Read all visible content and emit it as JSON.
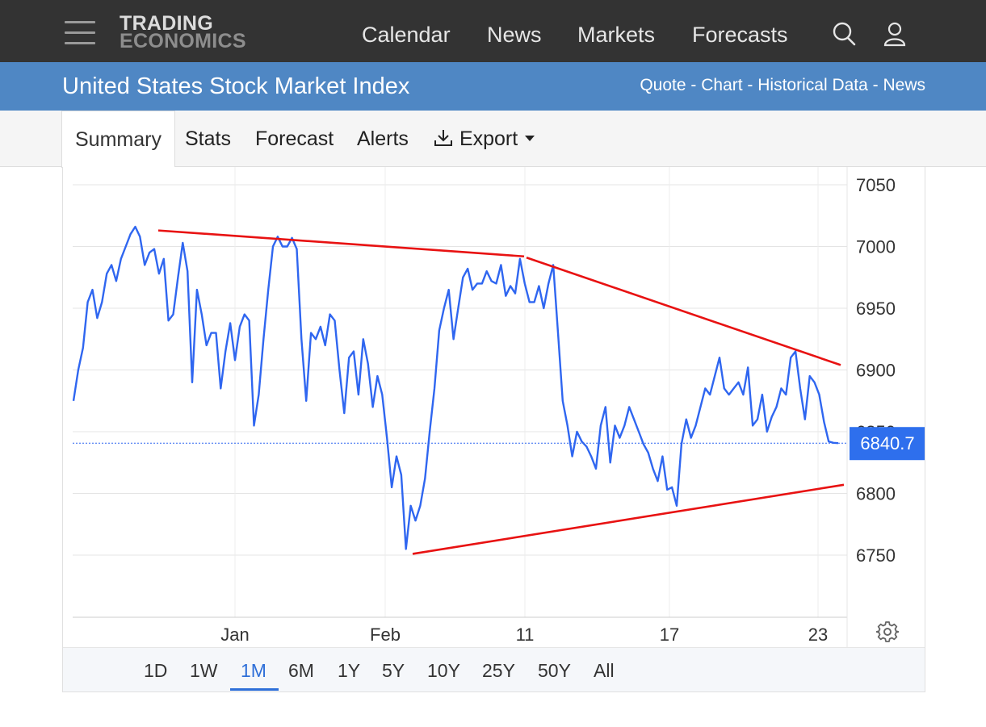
{
  "header": {
    "logo_line1": "TRADING",
    "logo_line2": "ECONOMICS",
    "nav": [
      "Calendar",
      "News",
      "Markets",
      "Forecasts"
    ]
  },
  "title_bar": {
    "title": "United States Stock Market Index",
    "links": [
      "Quote",
      "Chart",
      "Historical Data",
      "News"
    ],
    "separator": " - "
  },
  "tabs": {
    "items": [
      "Summary",
      "Stats",
      "Forecast",
      "Alerts"
    ],
    "active": "Summary",
    "export_label": "Export"
  },
  "range_buttons": {
    "items": [
      "1D",
      "1W",
      "1M",
      "6M",
      "1Y",
      "5Y",
      "10Y",
      "25Y",
      "50Y",
      "All"
    ],
    "active": "1M"
  },
  "colors": {
    "topbar": "#333333",
    "title_bar": "#4f87c4",
    "series": "#2f66f0",
    "trendline": "#e81212",
    "price_tag": "#2e6fed"
  },
  "chart_data": {
    "type": "line",
    "yticks": [
      6750,
      6800,
      6850,
      6900,
      6950,
      7000,
      7050
    ],
    "ylim": [
      6700,
      7058
    ],
    "xticks": [
      "Jan",
      "Feb",
      "11",
      "17",
      "23"
    ],
    "last_value": "6840.7",
    "grid": true,
    "series": [
      {
        "values": [
          6875,
          6900,
          6918,
          6955,
          6965,
          6942,
          6955,
          6978,
          6985,
          6972,
          6990,
          7000,
          7010,
          7016,
          7008,
          6985,
          6995,
          6998,
          6978,
          6990,
          6940,
          6945,
          6975,
          7003,
          6980,
          6890,
          6965,
          6945,
          6920,
          6930,
          6930,
          6885,
          6915,
          6938,
          6908,
          6935,
          6945,
          6940,
          6855,
          6880,
          6925,
          6965,
          7000,
          7008,
          7000,
          7000,
          7007,
          6998,
          6925,
          6875,
          6930,
          6925,
          6935,
          6920,
          6945,
          6940,
          6900,
          6865,
          6910,
          6915,
          6880,
          6925,
          6905,
          6870,
          6895,
          6880,
          6845,
          6805,
          6830,
          6815,
          6755,
          6790,
          6778,
          6790,
          6812,
          6850,
          6885,
          6932,
          6950,
          6965,
          6925,
          6950,
          6975,
          6982,
          6965,
          6970,
          6970,
          6980,
          6972,
          6970,
          6985,
          6960,
          6968,
          6962,
          6990,
          6970,
          6955,
          6955,
          6968,
          6950,
          6970,
          6985,
          6930,
          6875,
          6855,
          6830,
          6850,
          6842,
          6838,
          6830,
          6820,
          6855,
          6870,
          6825,
          6855,
          6845,
          6855,
          6870,
          6860,
          6850,
          6840,
          6833,
          6820,
          6810,
          6830,
          6803,
          6805,
          6790,
          6840,
          6860,
          6845,
          6855,
          6870,
          6885,
          6880,
          6895,
          6910,
          6885,
          6880,
          6885,
          6890,
          6880,
          6902,
          6855,
          6860,
          6880,
          6850,
          6862,
          6870,
          6885,
          6880,
          6910,
          6915,
          6885,
          6860,
          6895,
          6890,
          6880,
          6858,
          6842,
          6841,
          6840.7
        ]
      }
    ]
  }
}
